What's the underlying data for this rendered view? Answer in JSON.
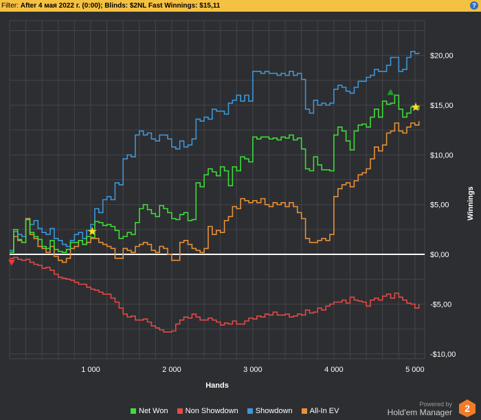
{
  "filter": {
    "label": "Filter: ",
    "value": "After 4 мая 2022 г. (0:00); Blinds: $2NL Fast",
    "winnings_label": " Winnings: $15,11",
    "help_glyph": "?"
  },
  "brand": {
    "powered_by": "Powered by",
    "name": "Hold'em Manager",
    "version": "2"
  },
  "colors": {
    "background": "#2d2e31",
    "grid": "#44464b",
    "zero_line": "#ffffff",
    "net_won": "#3ddc3a",
    "non_showdown": "#e34a48",
    "showdown": "#3c97db",
    "all_in_ev": "#e8913a",
    "filter_bar": "#f5c142",
    "logo": "#f07c2a"
  },
  "chart_data": {
    "type": "line",
    "xlabel": "Hands",
    "ylabel": "Winnings",
    "xlim": [
      0,
      5120
    ],
    "ylim": [
      -10.5,
      23.5
    ],
    "x_ticks": [
      1000,
      2000,
      3000,
      4000,
      5000
    ],
    "x_tick_labels": [
      "1 000",
      "2 000",
      "3 000",
      "4 000",
      "5 000"
    ],
    "y_ticks": [
      20,
      15,
      10,
      5,
      0,
      -5,
      -10
    ],
    "y_tick_labels": [
      "$20,00",
      "$15,00",
      "$10,00",
      "$5,00",
      "$0,00",
      "-$5,00",
      "-$10,00"
    ],
    "grid": true,
    "y_axis_side": "right",
    "legend_position": "bottom",
    "series": [
      {
        "name": "Net Won",
        "color": "#3ddc3a",
        "x": [
          0,
          50,
          100,
          150,
          200,
          250,
          300,
          350,
          400,
          450,
          500,
          550,
          600,
          650,
          700,
          750,
          800,
          850,
          900,
          950,
          1000,
          1050,
          1100,
          1150,
          1200,
          1250,
          1300,
          1350,
          1400,
          1450,
          1500,
          1550,
          1600,
          1650,
          1700,
          1750,
          1800,
          1850,
          1900,
          1950,
          2000,
          2050,
          2100,
          2150,
          2200,
          2250,
          2300,
          2350,
          2400,
          2450,
          2500,
          2550,
          2600,
          2650,
          2700,
          2750,
          2800,
          2850,
          2900,
          2950,
          3000,
          3050,
          3100,
          3150,
          3200,
          3250,
          3300,
          3350,
          3400,
          3450,
          3500,
          3550,
          3600,
          3650,
          3700,
          3750,
          3800,
          3850,
          3900,
          3950,
          4000,
          4050,
          4100,
          4150,
          4200,
          4250,
          4300,
          4350,
          4400,
          4450,
          4500,
          4550,
          4600,
          4650,
          4700,
          4750,
          4800,
          4850,
          4900,
          4950,
          5000,
          5050
        ],
        "y": [
          0.2,
          2.5,
          1.5,
          1.2,
          3.5,
          2.2,
          1.8,
          1.5,
          0.8,
          0.6,
          1.4,
          0.5,
          0.3,
          0.2,
          0.5,
          1.2,
          1.2,
          1.4,
          1.0,
          1.8,
          1.7,
          3.3,
          3.2,
          2.9,
          3.0,
          2.8,
          2.4,
          1.6,
          1.8,
          2.2,
          2.0,
          3.2,
          4.6,
          5.0,
          4.5,
          4.1,
          3.8,
          4.9,
          4.6,
          4.2,
          3.6,
          3.5,
          4.0,
          4.2,
          3.4,
          3.5,
          7.2,
          6.8,
          8.0,
          8.6,
          8.3,
          7.9,
          8.8,
          8.4,
          6.9,
          8.8,
          8.4,
          9.8,
          9.6,
          9.3,
          11.8,
          11.6,
          11.8,
          11.8,
          11.6,
          11.7,
          11.5,
          11.8,
          11.7,
          12.0,
          11.5,
          11.7,
          10.6,
          8.6,
          8.4,
          9.8,
          9.0,
          8.5,
          8.5,
          8.4,
          12.0,
          12.8,
          12.4,
          11.4,
          10.5,
          12.4,
          13.0,
          13.1,
          12.8,
          13.8,
          14.6,
          13.8,
          15.4,
          15.1,
          15.2,
          16.0,
          14.6,
          13.8,
          14.2,
          14.8,
          14.6,
          14.8
        ]
      },
      {
        "name": "Non Showdown",
        "color": "#e34a48",
        "x": [
          0,
          50,
          100,
          150,
          200,
          250,
          300,
          350,
          400,
          450,
          500,
          550,
          600,
          650,
          700,
          750,
          800,
          850,
          900,
          950,
          1000,
          1050,
          1100,
          1150,
          1200,
          1250,
          1300,
          1350,
          1400,
          1450,
          1500,
          1550,
          1600,
          1650,
          1700,
          1750,
          1800,
          1850,
          1900,
          1950,
          2000,
          2050,
          2100,
          2150,
          2200,
          2250,
          2300,
          2350,
          2400,
          2450,
          2500,
          2550,
          2600,
          2650,
          2700,
          2750,
          2800,
          2850,
          2900,
          2950,
          3000,
          3050,
          3100,
          3150,
          3200,
          3250,
          3300,
          3350,
          3400,
          3450,
          3500,
          3550,
          3600,
          3650,
          3700,
          3750,
          3800,
          3850,
          3900,
          3950,
          4000,
          4050,
          4100,
          4150,
          4200,
          4250,
          4300,
          4350,
          4400,
          4450,
          4500,
          4550,
          4600,
          4650,
          4700,
          4750,
          4800,
          4850,
          4900,
          4950,
          5000,
          5050
        ],
        "y": [
          -0.4,
          -0.3,
          -0.5,
          -0.6,
          -0.5,
          -0.8,
          -1.0,
          -1.1,
          -1.4,
          -1.3,
          -1.6,
          -2.0,
          -2.3,
          -2.4,
          -2.5,
          -2.6,
          -2.8,
          -3.0,
          -3.0,
          -3.3,
          -3.5,
          -3.6,
          -3.8,
          -4.0,
          -4.0,
          -4.4,
          -4.8,
          -5.4,
          -6.0,
          -6.3,
          -6.2,
          -6.6,
          -6.6,
          -6.5,
          -6.8,
          -7.2,
          -7.4,
          -7.6,
          -7.8,
          -7.8,
          -7.7,
          -7.0,
          -6.6,
          -6.3,
          -6.4,
          -6.0,
          -6.3,
          -6.6,
          -6.6,
          -6.4,
          -6.6,
          -6.8,
          -7.1,
          -6.9,
          -7.0,
          -6.7,
          -7.0,
          -7.0,
          -6.7,
          -6.4,
          -6.5,
          -6.2,
          -6.3,
          -6.0,
          -6.1,
          -5.8,
          -6.1,
          -6.1,
          -6.0,
          -6.3,
          -6.2,
          -6.0,
          -6.1,
          -5.6,
          -5.9,
          -5.8,
          -5.4,
          -5.6,
          -5.2,
          -5.0,
          -4.8,
          -4.8,
          -4.6,
          -4.9,
          -4.3,
          -4.6,
          -4.7,
          -4.8,
          -5.2,
          -4.6,
          -4.4,
          -4.6,
          -4.2,
          -4.0,
          -4.4,
          -3.9,
          -4.3,
          -4.6,
          -4.9,
          -5.0,
          -5.4,
          -5.0
        ]
      },
      {
        "name": "Showdown",
        "color": "#3c97db",
        "x": [
          0,
          50,
          100,
          150,
          200,
          250,
          300,
          350,
          400,
          450,
          500,
          550,
          600,
          650,
          700,
          750,
          800,
          850,
          900,
          950,
          1000,
          1050,
          1100,
          1150,
          1200,
          1250,
          1300,
          1350,
          1400,
          1450,
          1500,
          1550,
          1600,
          1650,
          1700,
          1750,
          1800,
          1850,
          1900,
          1950,
          2000,
          2050,
          2100,
          2150,
          2200,
          2250,
          2300,
          2350,
          2400,
          2450,
          2500,
          2550,
          2600,
          2650,
          2700,
          2750,
          2800,
          2850,
          2900,
          2950,
          3000,
          3050,
          3100,
          3150,
          3200,
          3250,
          3300,
          3350,
          3400,
          3450,
          3500,
          3550,
          3600,
          3650,
          3700,
          3750,
          3800,
          3850,
          3900,
          3950,
          4000,
          4050,
          4100,
          4150,
          4200,
          4250,
          4300,
          4350,
          4400,
          4450,
          4500,
          4550,
          4600,
          4650,
          4700,
          4750,
          4800,
          4850,
          4900,
          4950,
          5000,
          5050
        ],
        "y": [
          0.4,
          2.3,
          2.0,
          1.8,
          3.6,
          3.0,
          3.4,
          2.6,
          2.2,
          2.0,
          2.6,
          1.6,
          1.4,
          1.0,
          0.8,
          1.4,
          2.0,
          2.2,
          1.6,
          2.4,
          3.0,
          4.6,
          4.2,
          5.5,
          5.8,
          5.5,
          7.2,
          7.0,
          9.6,
          10.0,
          9.8,
          12.0,
          12.4,
          12.0,
          12.2,
          11.6,
          11.4,
          12.0,
          12.0,
          11.6,
          10.8,
          10.6,
          11.4,
          10.8,
          11.0,
          11.6,
          13.6,
          13.4,
          13.8,
          13.6,
          14.6,
          14.4,
          14.4,
          14.1,
          15.2,
          15.5,
          16.0,
          15.4,
          16.0,
          15.4,
          18.4,
          18.4,
          18.2,
          18.4,
          18.2,
          18.2,
          18.0,
          18.2,
          18.0,
          18.4,
          18.0,
          18.2,
          17.6,
          14.6,
          14.2,
          15.5,
          15.0,
          15.2,
          15.0,
          15.2,
          16.6,
          17.0,
          16.8,
          16.4,
          16.2,
          16.8,
          17.4,
          17.4,
          17.8,
          18.0,
          18.6,
          18.4,
          18.4,
          19.0,
          19.8,
          19.8,
          18.4,
          18.6,
          19.8,
          20.4,
          20.2,
          20.3
        ]
      },
      {
        "name": "All-In EV",
        "color": "#e8913a",
        "x": [
          0,
          50,
          100,
          150,
          200,
          250,
          300,
          350,
          400,
          450,
          500,
          550,
          600,
          650,
          700,
          750,
          800,
          850,
          900,
          950,
          1000,
          1050,
          1100,
          1150,
          1200,
          1250,
          1300,
          1350,
          1400,
          1450,
          1500,
          1550,
          1600,
          1650,
          1700,
          1750,
          1800,
          1850,
          1900,
          1950,
          2000,
          2050,
          2100,
          2150,
          2200,
          2250,
          2300,
          2350,
          2400,
          2450,
          2500,
          2550,
          2600,
          2650,
          2700,
          2750,
          2800,
          2850,
          2900,
          2950,
          3000,
          3050,
          3100,
          3150,
          3200,
          3250,
          3300,
          3350,
          3400,
          3450,
          3500,
          3550,
          3600,
          3650,
          3700,
          3750,
          3800,
          3850,
          3900,
          3950,
          4000,
          4050,
          4100,
          4150,
          4200,
          4250,
          4300,
          4350,
          4400,
          4450,
          4500,
          4550,
          4600,
          4650,
          4700,
          4750,
          4800,
          4850,
          4900,
          4950,
          5000,
          5050
        ],
        "y": [
          0.2,
          1.8,
          1.4,
          1.2,
          3.6,
          2.0,
          1.6,
          0.8,
          0.6,
          0.2,
          0.8,
          -0.2,
          -0.6,
          -0.8,
          -0.4,
          0.6,
          0.8,
          1.4,
          1.0,
          1.2,
          1.6,
          1.6,
          1.2,
          1.0,
          0.8,
          0.6,
          -0.4,
          -0.4,
          0.6,
          0.4,
          0.2,
          0.8,
          1.0,
          1.2,
          1.0,
          0.4,
          0.2,
          0.8,
          0.6,
          0.0,
          -0.6,
          -0.6,
          1.2,
          1.4,
          1.0,
          0.6,
          0.4,
          0.2,
          0.6,
          2.8,
          2.0,
          2.4,
          2.2,
          3.4,
          3.8,
          4.8,
          4.6,
          5.6,
          5.4,
          5.2,
          5.4,
          5.2,
          5.6,
          5.0,
          4.8,
          5.2,
          5.0,
          5.2,
          4.8,
          5.2,
          4.8,
          4.2,
          3.6,
          1.6,
          1.2,
          1.2,
          1.4,
          1.6,
          1.4,
          2.0,
          5.8,
          6.6,
          7.0,
          7.2,
          6.8,
          7.4,
          8.0,
          8.2,
          8.6,
          9.6,
          10.8,
          10.4,
          11.0,
          12.2,
          12.4,
          13.2,
          12.4,
          12.2,
          12.8,
          13.2,
          13.0,
          13.4
        ]
      }
    ],
    "markers": [
      {
        "shape": "star",
        "color": "#f5e02a",
        "x": 1020,
        "y": 2.3
      },
      {
        "shape": "star",
        "color": "#f5e02a",
        "x": 5010,
        "y": 14.8
      },
      {
        "shape": "triangle-down",
        "color": "#e83a3a",
        "x": 25,
        "y": -0.8
      },
      {
        "shape": "triangle-up",
        "color": "#1f9a2a",
        "x": 4700,
        "y": 16.3
      }
    ]
  },
  "legend": [
    {
      "label": "Net Won",
      "color": "#3ddc3a"
    },
    {
      "label": "Non Showdown",
      "color": "#e34a48"
    },
    {
      "label": "Showdown",
      "color": "#3c97db"
    },
    {
      "label": "All-In EV",
      "color": "#e8913a"
    }
  ]
}
